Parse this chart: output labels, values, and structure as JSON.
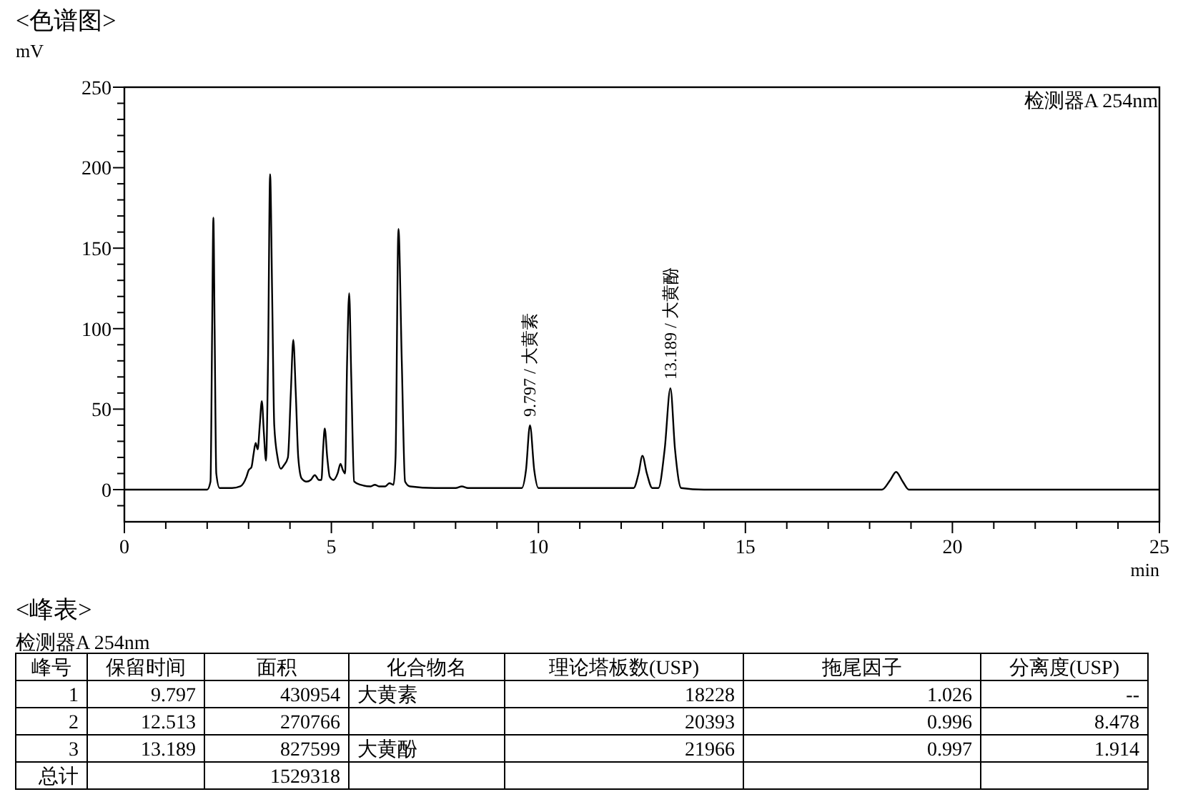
{
  "chart_data": [
    {
      "type": "line",
      "title": "<色谱图>",
      "xlabel": "min",
      "ylabel": "mV",
      "xlim": [
        0,
        25
      ],
      "ylim": [
        -20,
        250
      ],
      "xticks": [
        0,
        {
          "value": 1,
          "label": null
        },
        {
          "value": 2,
          "label": null
        },
        {
          "value": 3,
          "label": null
        },
        {
          "value": 4,
          "label": null
        },
        5,
        {
          "value": 6,
          "label": null
        },
        {
          "value": 7,
          "label": null
        },
        {
          "value": 8,
          "label": null
        },
        {
          "value": 9,
          "label": null
        },
        10,
        {
          "value": 11,
          "label": null
        },
        {
          "value": 12,
          "label": null
        },
        {
          "value": 13,
          "label": null
        },
        {
          "value": 14,
          "label": null
        },
        15,
        {
          "value": 16,
          "label": null
        },
        {
          "value": 17,
          "label": null
        },
        {
          "value": 18,
          "label": null
        },
        {
          "value": 19,
          "label": null
        },
        20,
        {
          "value": 21,
          "label": null
        },
        {
          "value": 22,
          "label": null
        },
        {
          "value": 23,
          "label": null
        },
        {
          "value": 24,
          "label": null
        },
        25
      ],
      "yticks": [
        {
          "value": -10,
          "label": null
        },
        0,
        {
          "value": 10,
          "label": null
        },
        {
          "value": 20,
          "label": null
        },
        {
          "value": 30,
          "label": null
        },
        {
          "value": 40,
          "label": null
        },
        50,
        {
          "value": 60,
          "label": null
        },
        {
          "value": 70,
          "label": null
        },
        {
          "value": 80,
          "label": null
        },
        {
          "value": 90,
          "label": null
        },
        100,
        {
          "value": 110,
          "label": null
        },
        {
          "value": 120,
          "label": null
        },
        {
          "value": 130,
          "label": null
        },
        {
          "value": 140,
          "label": null
        },
        150,
        {
          "value": 160,
          "label": null
        },
        {
          "value": 170,
          "label": null
        },
        {
          "value": 180,
          "label": null
        },
        {
          "value": 190,
          "label": null
        },
        200,
        {
          "value": 210,
          "label": null
        },
        {
          "value": 220,
          "label": null
        },
        {
          "value": 230,
          "label": null
        },
        {
          "value": 240,
          "label": null
        },
        250
      ],
      "grid": false,
      "marker": "none",
      "line_style": "solid",
      "annotations": [
        {
          "text": "9.797 / 大黄素",
          "x": 9.797,
          "y": 40
        },
        {
          "text": "13.189 / 大黄酚",
          "x": 13.189,
          "y": 63
        },
        "检测器A 254nm"
      ],
      "series": [
        {
          "color": "#000000",
          "x": [
            0,
            2.0,
            2.08,
            2.12,
            2.15,
            2.18,
            2.22,
            2.3,
            2.6,
            2.8,
            2.95,
            3.0,
            3.07,
            3.12,
            3.17,
            3.22,
            3.27,
            3.32,
            3.37,
            3.42,
            3.47,
            3.52,
            3.57,
            3.62,
            3.7,
            3.78,
            3.85,
            3.95,
            4.02,
            4.08,
            4.14,
            4.2,
            4.28,
            4.4,
            4.5,
            4.6,
            4.7,
            4.76,
            4.8,
            4.84,
            4.9,
            4.96,
            5.05,
            5.15,
            5.22,
            5.28,
            5.33,
            5.38,
            5.43,
            5.48,
            5.55,
            5.7,
            5.95,
            6.05,
            6.15,
            6.3,
            6.4,
            6.5,
            6.55,
            6.62,
            6.7,
            6.78,
            6.9,
            7.5,
            8.0,
            8.15,
            8.3,
            9.0,
            9.6,
            9.7,
            9.797,
            9.9,
            10.0,
            10.5,
            12.3,
            12.42,
            12.513,
            12.62,
            12.75,
            12.9,
            13.05,
            13.189,
            13.3,
            13.45,
            14,
            18.3,
            18.5,
            18.64,
            18.8,
            18.95,
            25
          ],
          "values": [
            0,
            0,
            5,
            100,
            169,
            100,
            10,
            1,
            1,
            2,
            8,
            12,
            14,
            22,
            29,
            25,
            40,
            55,
            35,
            18,
            80,
            196,
            120,
            40,
            20,
            13,
            15,
            20,
            60,
            93,
            60,
            20,
            7,
            5,
            6,
            9,
            6,
            6,
            25,
            38,
            20,
            8,
            6,
            10,
            16,
            12,
            10,
            80,
            122,
            70,
            5,
            3,
            2,
            3,
            2,
            2,
            4,
            3,
            20,
            162,
            80,
            5,
            2,
            1,
            1,
            2,
            1,
            1,
            1,
            12,
            40,
            12,
            1,
            1,
            1,
            10,
            21,
            10,
            1,
            1,
            25,
            63,
            25,
            1,
            0,
            0,
            6,
            11,
            5,
            0,
            0
          ]
        }
      ]
    },
    {
      "type": "other",
      "title": "<峰表>",
      "subtitle": "检测器A 254nm",
      "categories": [
        "峰号",
        "保留时间",
        "面积",
        "化合物名",
        "理论塔板数(USP)",
        "拖尾因子",
        "分离度(USP)"
      ],
      "cell_labels": [
        [
          "1",
          "9.797",
          "430954",
          "大黄素",
          "18228",
          "1.026",
          "--"
        ],
        [
          "2",
          "12.513",
          "270766",
          null,
          "20393",
          "0.996",
          "8.478"
        ],
        [
          "3",
          "13.189",
          "827599",
          "大黄酚",
          "21966",
          "0.997",
          "1.914"
        ],
        [
          "总计",
          null,
          "1529318",
          null,
          null,
          null,
          null
        ]
      ]
    }
  ]
}
